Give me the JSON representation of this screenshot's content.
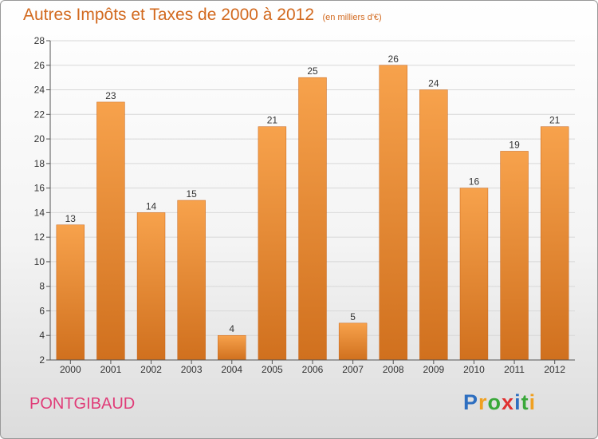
{
  "chart_data": {
    "type": "bar",
    "title": "Autres Impôts et Taxes de 2000 à 2012",
    "subtitle": "(en milliers d'€)",
    "categories": [
      "2000",
      "2001",
      "2002",
      "2003",
      "2004",
      "2005",
      "2006",
      "2007",
      "2008",
      "2009",
      "2010",
      "2011",
      "2012"
    ],
    "values": [
      13,
      23,
      14,
      15,
      4,
      21,
      25,
      5,
      26,
      24,
      16,
      19,
      21
    ],
    "ylim": [
      2,
      28
    ],
    "yticks": [
      2,
      4,
      6,
      8,
      10,
      12,
      14,
      16,
      18,
      20,
      22,
      24,
      26,
      28
    ],
    "grid": true,
    "data_labels": true,
    "xlabel": "",
    "ylabel": "",
    "bar_color_light": "#f7a24c",
    "bar_color_dark": "#d0701e"
  },
  "footer": {
    "city": "PONTGIBAUD",
    "brand_letters": [
      "P",
      "r",
      "o",
      "x",
      "i",
      "t",
      "i"
    ],
    "brand_colors": [
      "#2e6fc0",
      "#f0a020",
      "#3aa83a",
      "#e03030",
      "#2e6fc0",
      "#3aa83a",
      "#f0a020"
    ]
  },
  "colors": {
    "title": "#d2691e",
    "city": "#e03c78",
    "axis_text": "#333333",
    "grid": "#d8d8d8"
  }
}
